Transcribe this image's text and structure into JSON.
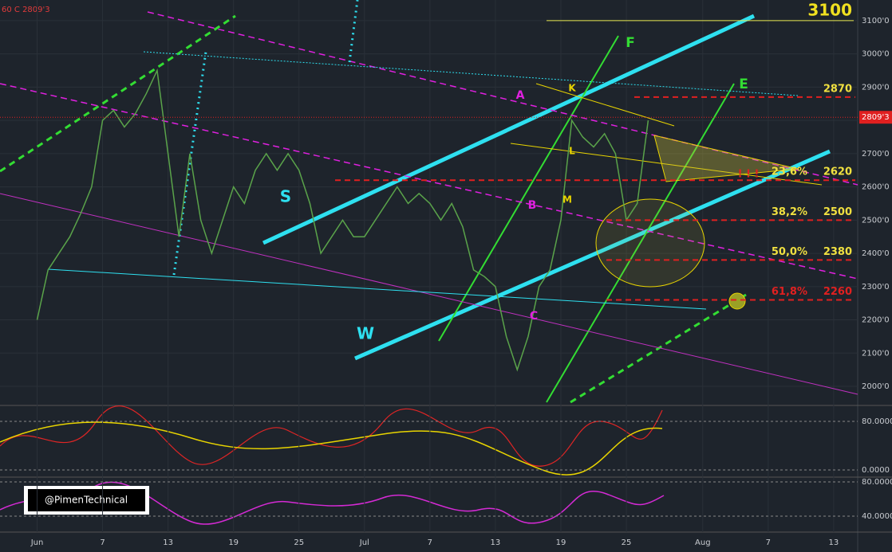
{
  "chart_data": {
    "type": "line",
    "header": "60  C  2809'3",
    "x": [
      0,
      1,
      2,
      3,
      4,
      5,
      6,
      7,
      8,
      9,
      10,
      11,
      12,
      13,
      14,
      15,
      16,
      17,
      18,
      19,
      20,
      21,
      22,
      23,
      24,
      25,
      26,
      27,
      28,
      29,
      30,
      31,
      32,
      33,
      34,
      35,
      36,
      37,
      38,
      39,
      40,
      41,
      42,
      43,
      44,
      45,
      46,
      47,
      48,
      49,
      50,
      51,
      52,
      53,
      54,
      55,
      56
    ],
    "series": [
      {
        "name": "Close",
        "color": "#5aa34a",
        "values": [
          2200,
          2350,
          2400,
          2450,
          2520,
          2600,
          2800,
          2830,
          2780,
          2820,
          2880,
          2950,
          2700,
          2450,
          2700,
          2500,
          2400,
          2500,
          2600,
          2550,
          2650,
          2700,
          2650,
          2700,
          2650,
          2550,
          2400,
          2450,
          2500,
          2450,
          2450,
          2500,
          2550,
          2600,
          2550,
          2580,
          2550,
          2500,
          2550,
          2480,
          2350,
          2330,
          2300,
          2150,
          2050,
          2150,
          2300,
          2350,
          2500,
          2800,
          2750,
          2720,
          2760,
          2700,
          2500,
          2550,
          2800
        ]
      }
    ],
    "xlim": [
      -3.4,
      75.2
    ],
    "xticks": [
      {
        "value": 0,
        "label": "Jun"
      },
      {
        "value": 6,
        "label": "7"
      },
      {
        "value": 12,
        "label": "13"
      },
      {
        "value": 18,
        "label": "19"
      },
      {
        "value": 24,
        "label": "25"
      },
      {
        "value": 30,
        "label": "Jul"
      },
      {
        "value": 36,
        "label": "7"
      },
      {
        "value": 42,
        "label": "13"
      },
      {
        "value": 48,
        "label": "19"
      },
      {
        "value": 54,
        "label": "25"
      },
      {
        "value": 61,
        "label": "Aug"
      },
      {
        "value": 67,
        "label": "7"
      },
      {
        "value": 73,
        "label": "13"
      }
    ],
    "ylim": [
      1945,
      3162
    ],
    "yticks": [
      {
        "value": 2000,
        "label": "2000'0"
      },
      {
        "value": 2100,
        "label": "2100'0"
      },
      {
        "value": 2200,
        "label": "2200'0"
      },
      {
        "value": 2300,
        "label": "2300'0"
      },
      {
        "value": 2400,
        "label": "2400'0"
      },
      {
        "value": 2500,
        "label": "2500'0"
      },
      {
        "value": 2600,
        "label": "2600'0"
      },
      {
        "value": 2700,
        "label": "2700'0"
      },
      {
        "value": 2800,
        "label": "2800'0"
      },
      {
        "value": 2900,
        "label": "2900'0"
      },
      {
        "value": 3000,
        "label": "3000'0"
      },
      {
        "value": 3100,
        "label": "3100'0"
      }
    ],
    "last_price": {
      "value": 2809.3,
      "label": "2809'3"
    },
    "target": 3100,
    "levels": [
      {
        "price": 2870
      },
      {
        "price": 2620,
        "pct": "23,6%"
      },
      {
        "price": 2500,
        "pct": "38,2%"
      },
      {
        "price": 2380,
        "pct": "50,0%"
      },
      {
        "price": 2260,
        "pct": "61,8%"
      }
    ],
    "marks": [
      "F",
      "E",
      "A",
      "K",
      "L",
      "B",
      "M",
      "C",
      "S",
      "W",
      "! ! !"
    ],
    "osc1_ticks": [
      {
        "value": 80,
        "label": "80.0000"
      },
      {
        "value": 0,
        "label": "0.0000"
      }
    ],
    "osc2_ticks": [
      {
        "value": 80,
        "label": "80.0000"
      },
      {
        "value": 40,
        "label": "40.0000"
      }
    ],
    "watermark": "@PimenTechnical"
  }
}
